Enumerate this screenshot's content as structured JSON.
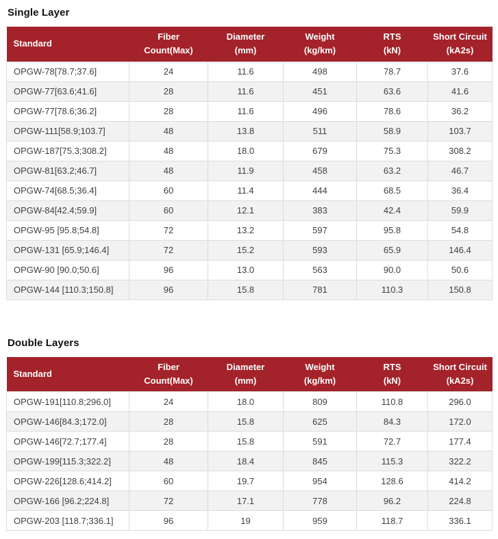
{
  "colors": {
    "header_bg": "#A42229",
    "header_text": "#FFFFFF",
    "row_stripe": "#F2F2F2",
    "body_text": "#404040",
    "border": "#DCDCDC"
  },
  "sections": [
    {
      "title": "Single Layer",
      "columns": [
        [
          "Standard"
        ],
        [
          "Fiber",
          "Count(Max)"
        ],
        [
          "Diameter",
          "(mm)"
        ],
        [
          "Weight",
          "(kg/km)"
        ],
        [
          "RTS",
          "(kN)"
        ],
        [
          "Short Circuit",
          "(kA2s)"
        ]
      ],
      "rows": [
        [
          "OPGW-78[78.7;37.6]",
          "24",
          "11.6",
          "498",
          "78.7",
          "37.6"
        ],
        [
          "OPGW-77[63.6;41.6]",
          "28",
          "11.6",
          "451",
          "63.6",
          "41.6"
        ],
        [
          "OPGW-77[78.6;36.2]",
          "28",
          "11.6",
          "496",
          "78.6",
          "36.2"
        ],
        [
          "OPGW-111[58.9;103.7]",
          "48",
          "13.8",
          "511",
          "58.9",
          "103.7"
        ],
        [
          "OPGW-187[75.3;308.2]",
          "48",
          "18.0",
          "679",
          "75.3",
          "308.2"
        ],
        [
          "OPGW-81[63.2;46.7]",
          "48",
          "11.9",
          "458",
          "63.2",
          "46.7"
        ],
        [
          "OPGW-74[68.5;36.4]",
          "60",
          "11.4",
          "444",
          "68.5",
          "36.4"
        ],
        [
          "OPGW-84[42.4;59.9]",
          "60",
          "12.1",
          "383",
          "42.4",
          "59.9"
        ],
        [
          "OPGW-95 [95.8;54.8]",
          "72",
          "13.2",
          "597",
          "95.8",
          "54.8"
        ],
        [
          "OPGW-131 [65.9;146.4]",
          "72",
          "15.2",
          "593",
          "65.9",
          "146.4"
        ],
        [
          "OPGW-90 [90.0;50.6]",
          "96",
          "13.0",
          "563",
          "90.0",
          "50.6"
        ],
        [
          "OPGW-144 [110.3;150.8]",
          "96",
          "15.8",
          "781",
          "110.3",
          "150.8"
        ]
      ]
    },
    {
      "title": "Double Layers",
      "columns": [
        [
          "Standard"
        ],
        [
          "Fiber",
          "Count(Max)"
        ],
        [
          "Diameter",
          "(mm)"
        ],
        [
          "Weight",
          "(kg/km)"
        ],
        [
          "RTS",
          "(kN)"
        ],
        [
          "Short Circuit",
          "(kA2s)"
        ]
      ],
      "rows": [
        [
          "OPGW-191[110.8;296.0]",
          "24",
          "18.0",
          "809",
          "110.8",
          "296.0"
        ],
        [
          "OPGW-146[84.3;172.0]",
          "28",
          "15.8",
          "625",
          "84.3",
          "172.0"
        ],
        [
          "OPGW-146[72.7;177.4]",
          "28",
          "15.8",
          "591",
          "72.7",
          "177.4"
        ],
        [
          "OPGW-199[115.3;322.2]",
          "48",
          "18.4",
          "845",
          "115.3",
          "322.2"
        ],
        [
          "OPGW-226[128.6;414.2]",
          "60",
          "19.7",
          "954",
          "128.6",
          "414.2"
        ],
        [
          "OPGW-166 [96.2;224.8]",
          "72",
          "17.1",
          "778",
          "96.2",
          "224.8"
        ],
        [
          "OPGW-203 [118.7;336.1]",
          "96",
          "19",
          "959",
          "118.7",
          "336.1"
        ]
      ]
    }
  ]
}
